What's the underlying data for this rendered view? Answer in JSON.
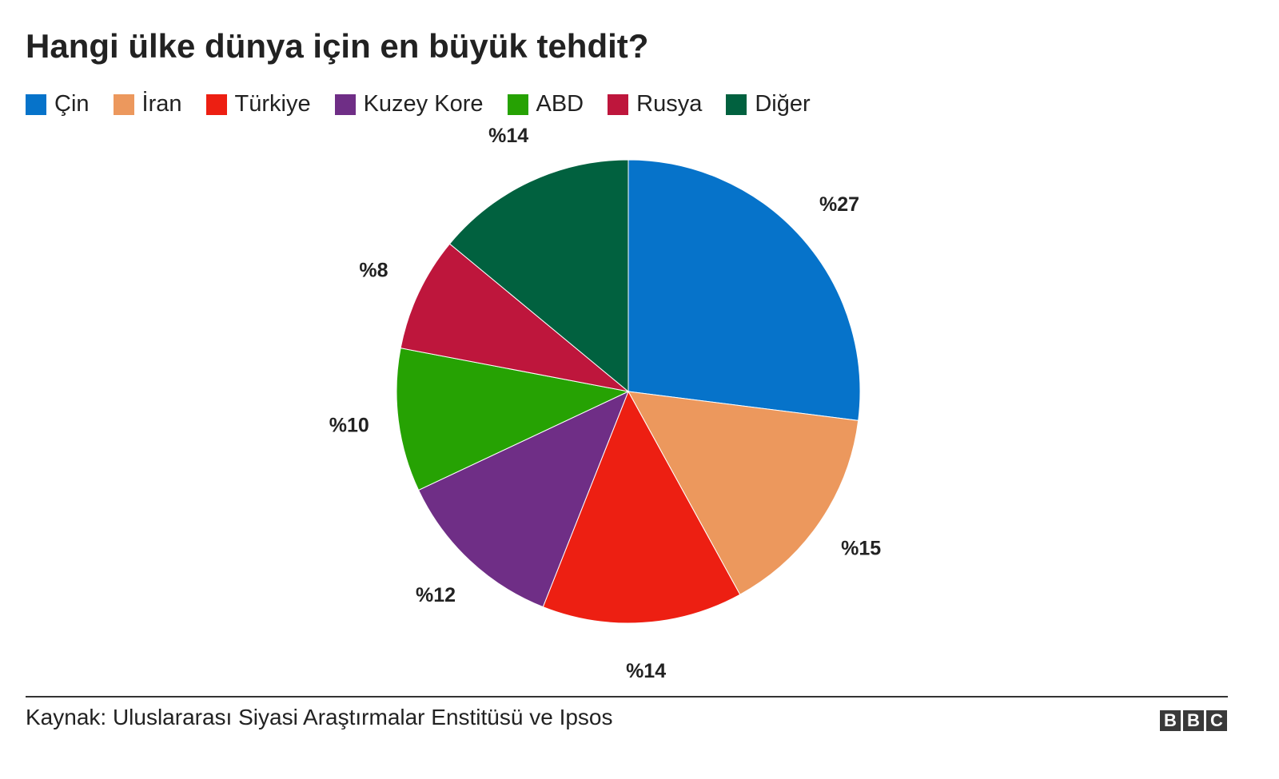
{
  "chart_data": {
    "type": "pie",
    "title": "Hangi ülke dünya için en büyük tehdit?",
    "categories": [
      "Çin",
      "İran",
      "Türkiye",
      "Kuzey Kore",
      "ABD",
      "Rusya",
      "Diğer"
    ],
    "values": [
      27,
      15,
      14,
      12,
      10,
      8,
      14
    ],
    "value_labels": [
      "%27",
      "%15",
      "%14",
      "%12",
      "%10",
      "%8",
      "%14"
    ],
    "colors": [
      "#0673ca",
      "#ec985d",
      "#ed1f12",
      "#6f2e86",
      "#26a203",
      "#be163c",
      "#01613f"
    ],
    "source": "Kaynak: Uluslararası Siyasi Araştırmalar Enstitüsü ve Ipsos",
    "logo": [
      "B",
      "B",
      "C"
    ]
  }
}
